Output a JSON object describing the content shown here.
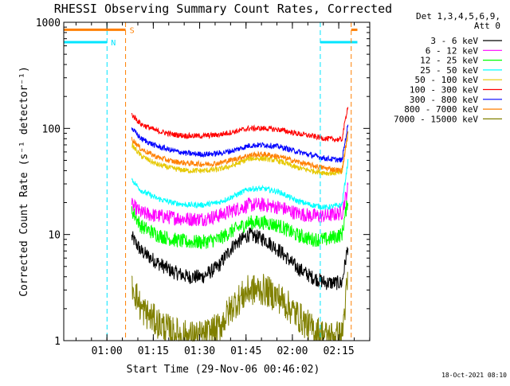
{
  "chart_data": {
    "type": "line",
    "title": "RHESSI Observing Summary Count Rates, Corrected",
    "xlabel": "Start Time (29-Nov-06 00:46:02)",
    "ylabel": "Corrected Count Rate (s⁻¹ detector⁻¹)",
    "y_scale": "log",
    "ylim": [
      1,
      1000
    ],
    "y_ticks": [
      {
        "value": 1,
        "label": "1"
      },
      {
        "value": 10,
        "label": "10"
      },
      {
        "value": 100,
        "label": "100"
      },
      {
        "value": 1000,
        "label": "1000"
      }
    ],
    "x_unit": "minutes after 00:46:02",
    "xlim": [
      0,
      99
    ],
    "x_ticks": [
      {
        "value": 13.97,
        "label": "01:00"
      },
      {
        "value": 28.97,
        "label": "01:15"
      },
      {
        "value": 43.97,
        "label": "01:30"
      },
      {
        "value": 58.97,
        "label": "01:45"
      },
      {
        "value": 73.97,
        "label": "02:00"
      },
      {
        "value": 88.97,
        "label": "02:15"
      }
    ],
    "legend_header": [
      "Det 1,3,4,5,6,9,",
      "Att 0"
    ],
    "legend_position": "right, outside plot",
    "x": [
      22,
      25,
      30,
      35,
      40,
      45,
      50,
      55,
      60,
      65,
      70,
      75,
      80,
      85,
      90,
      92
    ],
    "series": [
      {
        "name": "3 - 6 keV",
        "color": "#000000",
        "values": [
          9.5,
          7,
          5.5,
          4.5,
          4,
          4,
          5,
          8,
          10,
          9,
          7,
          5,
          4,
          3.5,
          3.5,
          8
        ]
      },
      {
        "name": "6 - 12 keV",
        "color": "#ff00ff",
        "values": [
          19,
          16,
          15,
          14.5,
          14,
          14,
          15,
          17,
          19,
          19,
          18,
          16,
          15,
          15,
          16,
          28
        ]
      },
      {
        "name": "12 - 25 keV",
        "color": "#00ff00",
        "values": [
          17,
          12,
          10,
          9,
          8.5,
          8.5,
          9,
          11,
          13,
          13,
          12,
          10,
          9,
          9,
          10,
          22
        ]
      },
      {
        "name": "25 - 50 keV",
        "color": "#00ffff",
        "values": [
          33,
          26,
          22,
          20,
          19,
          19,
          20,
          23,
          27,
          27,
          25,
          21,
          19,
          18,
          19,
          50
        ]
      },
      {
        "name": "50 - 100 keV",
        "color": "#e6c800",
        "values": [
          70,
          55,
          46,
          42,
          40,
          40,
          41,
          45,
          52,
          52,
          49,
          43,
          40,
          38,
          38,
          95
        ]
      },
      {
        "name": "100 - 300 keV",
        "color": "#ff0000",
        "values": [
          135,
          110,
          95,
          88,
          85,
          85,
          87,
          93,
          100,
          100,
          97,
          90,
          85,
          80,
          78,
          170
        ]
      },
      {
        "name": "300 - 800 keV",
        "color": "#0000ff",
        "values": [
          100,
          80,
          68,
          62,
          58,
          57,
          58,
          62,
          69,
          70,
          67,
          61,
          56,
          52,
          50,
          110
        ]
      },
      {
        "name": "800 - 7000 keV",
        "color": "#ff7f00",
        "values": [
          80,
          64,
          54,
          49,
          47,
          46,
          47,
          51,
          56,
          57,
          54,
          49,
          45,
          42,
          40,
          90
        ]
      },
      {
        "name": "7000 - 15000 keV",
        "color": "#808000",
        "values": [
          3.5,
          2,
          1.5,
          1.2,
          1.1,
          1.1,
          1.3,
          2.2,
          3,
          3,
          2.5,
          1.8,
          1.3,
          1.1,
          1.1,
          4
        ]
      }
    ],
    "flags": [
      {
        "label": "N",
        "color": "#00e5ff",
        "level": 650,
        "segments": [
          [
            0,
            14
          ]
        ],
        "extra_segments": [
          [
            83,
            95
          ]
        ],
        "boundaries": [
          14,
          83
        ]
      },
      {
        "label": "S",
        "color": "#ff7f00",
        "level": 850,
        "segments": [
          [
            0,
            20
          ]
        ],
        "extra_segments": [
          [
            93,
            95
          ]
        ],
        "boundaries": [
          20,
          93
        ]
      }
    ],
    "grid": false
  },
  "footer": {
    "timestamp": "18-Oct-2021 08:10"
  }
}
